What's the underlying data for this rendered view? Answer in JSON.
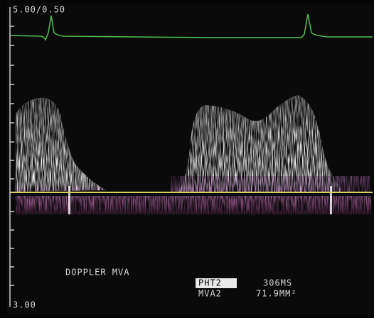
{
  "display": {
    "scale_top": "5.00/0.50",
    "scale_bottom": "3.00",
    "mode_label": "DOPPLER MVA",
    "measurements": [
      {
        "name": "PHT2",
        "value": "306MS"
      },
      {
        "name": "MVA2",
        "value": "71.9MM²"
      }
    ]
  }
}
